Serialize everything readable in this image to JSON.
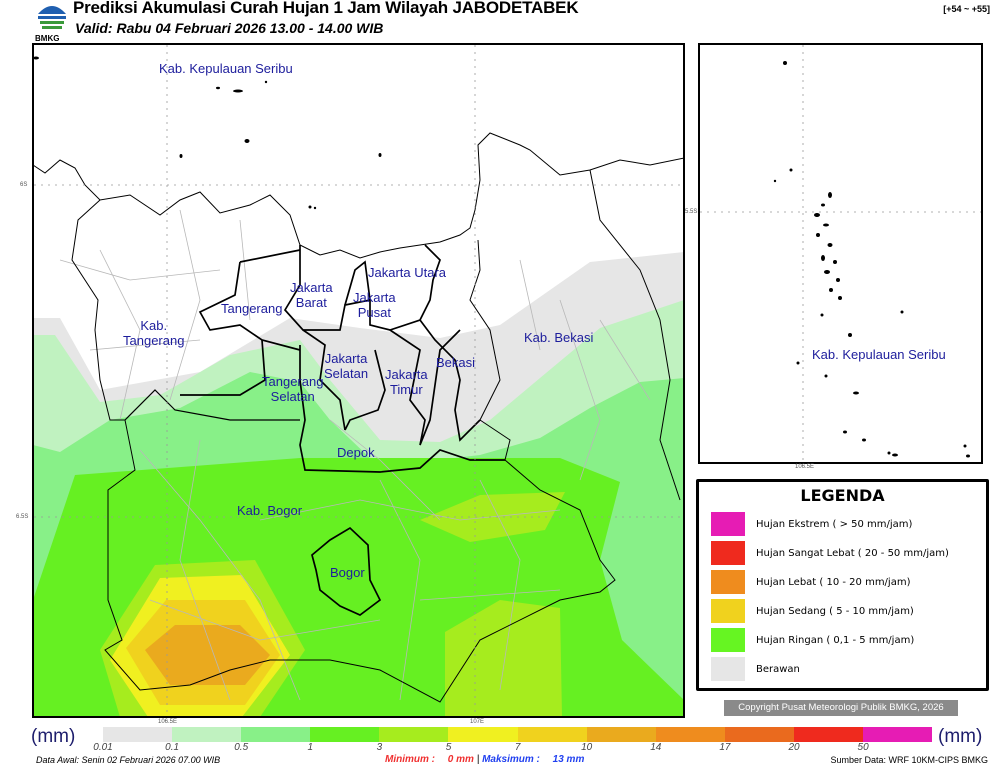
{
  "header": {
    "title": "Prediksi Akumulasi Curah Hujan 1 Jam Wilayah JABODETABEK",
    "valid": "Valid: Rabu 04 Februari 2026 13.00 - 14.00 WIB",
    "range": "[+54 ~ +55]",
    "logo_text": "BMKG"
  },
  "main_map": {
    "lat_ticks": [
      "6S",
      "6.5S"
    ],
    "lon_ticks": [
      "106.5E",
      "107E"
    ],
    "regions": [
      "Kab. Kepulauan Seribu",
      "Jakarta Utara",
      "Jakarta\nBarat",
      "Jakarta\nPusat",
      "Tangerang",
      "Kab.\nTangerang",
      "Kab. Bekasi",
      "Jakarta\nSelatan",
      "Bekasi",
      "Jakarta\nTimur",
      "Tangerang\nSelatan",
      "Depok",
      "Kab. Bogor",
      "Bogor"
    ]
  },
  "inset_map": {
    "lat_tick": "5.5S",
    "lon_tick": "106.5E",
    "region": "Kab. Kepulauan Seribu"
  },
  "legend": {
    "title": "LEGENDA",
    "items": [
      {
        "label": "Hujan Ekstrem ( > 50 mm/jam)",
        "color": "#e61cb4"
      },
      {
        "label": "Hujan Sangat Lebat ( 20 - 50 mm/jam)",
        "color": "#ef2a1e"
      },
      {
        "label": "Hujan Lebat ( 10 - 20 mm/jam)",
        "color": "#ef8c1e"
      },
      {
        "label": "Hujan Sedang ( 5 - 10 mm/jam)",
        "color": "#f0d21e"
      },
      {
        "label": "Hujan Ringan ( 0,1 - 5 mm/jam)",
        "color": "#66f522"
      },
      {
        "label": "Berawan",
        "color": "#e6e6e6"
      }
    ]
  },
  "copyright": "Copyright Pusat Meteorologi Publik BMKG, 2026",
  "colorbar": {
    "unit": "(mm)",
    "colors": [
      "#e6e6e6",
      "#c0f2c0",
      "#88f088",
      "#66f022",
      "#a6ec1e",
      "#f0f020",
      "#f0d21e",
      "#eaaa1e",
      "#ef8c1e",
      "#ea6a1e",
      "#ef2a1e",
      "#e61cb4"
    ],
    "labels": [
      "0.01",
      "0.1",
      "0.5",
      "1",
      "3",
      "5",
      "7",
      "10",
      "14",
      "17",
      "20",
      "50"
    ]
  },
  "footer": {
    "data_awal": "Data Awal: Senin 02 Februari 2026 07.00 WIB",
    "min_label": "Minimum :",
    "min_value": "0 mm",
    "max_label": "Maksimum :",
    "max_value": "13 mm",
    "source": "Sumber Data: WRF 10KM-CIPS BMKG"
  }
}
